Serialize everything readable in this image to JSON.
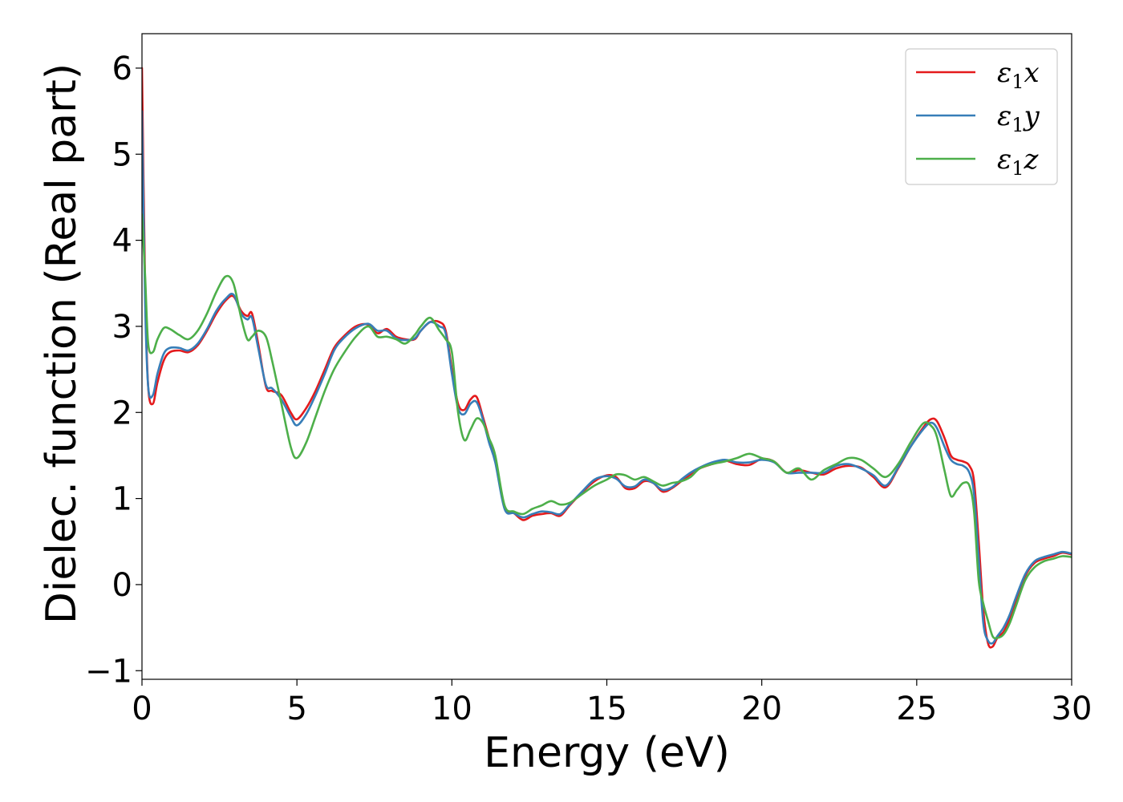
{
  "chart_data": {
    "type": "line",
    "title": "",
    "xlabel": "Energy (eV)",
    "ylabel": "Dielec. function (Real part)",
    "xlim": [
      0,
      30
    ],
    "ylim": [
      -1.1,
      6.4
    ],
    "x_ticks": [
      0,
      5,
      10,
      15,
      20,
      25,
      30
    ],
    "y_ticks": [
      -1,
      0,
      1,
      2,
      3,
      4,
      5,
      6
    ],
    "x_tick_labels": [
      "0",
      "5",
      "10",
      "15",
      "20",
      "25",
      "30"
    ],
    "y_tick_labels": [
      "−1",
      "0",
      "1",
      "2",
      "3",
      "4",
      "5",
      "6"
    ],
    "grid": false,
    "legend_position": "top-right",
    "series": [
      {
        "name": "ε₁x",
        "legend_base": "ε",
        "legend_sub": "1",
        "legend_var": "x",
        "color": "#e41a1c",
        "x": [
          0,
          0.1,
          0.2,
          0.35,
          0.5,
          0.7,
          0.9,
          1.2,
          1.5,
          1.8,
          2.1,
          2.4,
          2.7,
          2.95,
          3.2,
          3.4,
          3.55,
          3.75,
          4.0,
          4.2,
          4.5,
          4.8,
          5.0,
          5.3,
          5.6,
          5.9,
          6.2,
          6.5,
          6.9,
          7.3,
          7.6,
          7.9,
          8.2,
          8.5,
          8.8,
          9.0,
          9.3,
          9.6,
          9.8,
          10.0,
          10.2,
          10.4,
          10.6,
          10.8,
          11.0,
          11.2,
          11.4,
          11.7,
          12.0,
          12.3,
          12.6,
          12.9,
          13.2,
          13.5,
          13.8,
          14.2,
          14.6,
          15.0,
          15.3,
          15.6,
          15.9,
          16.2,
          16.5,
          16.8,
          17.1,
          17.4,
          17.7,
          18.0,
          18.4,
          18.8,
          19.2,
          19.6,
          20.0,
          20.4,
          20.8,
          21.2,
          21.6,
          22.0,
          22.4,
          22.8,
          23.2,
          23.6,
          24.0,
          24.4,
          24.8,
          25.2,
          25.45,
          25.65,
          25.9,
          26.1,
          26.3,
          26.5,
          26.7,
          26.85,
          27.0,
          27.15,
          27.3,
          27.45,
          27.6,
          27.8,
          28.0,
          28.2,
          28.5,
          28.8,
          29.1,
          29.4,
          29.7,
          30.0
        ],
        "y": [
          6.0,
          3.5,
          2.3,
          2.1,
          2.35,
          2.6,
          2.7,
          2.72,
          2.7,
          2.78,
          2.95,
          3.15,
          3.3,
          3.35,
          3.18,
          3.12,
          3.15,
          2.8,
          2.3,
          2.25,
          2.2,
          2.0,
          1.92,
          2.05,
          2.25,
          2.5,
          2.75,
          2.88,
          3.0,
          3.02,
          2.92,
          2.97,
          2.88,
          2.85,
          2.85,
          2.95,
          3.05,
          3.05,
          2.95,
          2.5,
          2.1,
          2.03,
          2.15,
          2.18,
          1.95,
          1.7,
          1.45,
          0.9,
          0.83,
          0.75,
          0.8,
          0.82,
          0.83,
          0.8,
          0.92,
          1.07,
          1.2,
          1.27,
          1.25,
          1.12,
          1.12,
          1.2,
          1.18,
          1.08,
          1.12,
          1.2,
          1.28,
          1.35,
          1.4,
          1.44,
          1.4,
          1.39,
          1.46,
          1.43,
          1.3,
          1.33,
          1.3,
          1.28,
          1.35,
          1.38,
          1.36,
          1.25,
          1.13,
          1.35,
          1.6,
          1.82,
          1.92,
          1.9,
          1.7,
          1.5,
          1.45,
          1.43,
          1.38,
          1.2,
          0.5,
          -0.3,
          -0.68,
          -0.72,
          -0.62,
          -0.55,
          -0.4,
          -0.2,
          0.1,
          0.25,
          0.3,
          0.33,
          0.37,
          0.35
        ]
      },
      {
        "name": "ε₁y",
        "legend_base": "ε",
        "legend_sub": "1",
        "legend_var": "y",
        "color": "#377eb8",
        "x": [
          0,
          0.1,
          0.2,
          0.35,
          0.5,
          0.7,
          0.9,
          1.2,
          1.5,
          1.8,
          2.1,
          2.4,
          2.7,
          2.95,
          3.2,
          3.4,
          3.55,
          3.75,
          4.0,
          4.2,
          4.5,
          4.8,
          5.0,
          5.3,
          5.6,
          5.9,
          6.2,
          6.5,
          6.9,
          7.3,
          7.6,
          7.9,
          8.2,
          8.5,
          8.8,
          9.0,
          9.3,
          9.6,
          9.8,
          10.0,
          10.2,
          10.4,
          10.6,
          10.8,
          11.0,
          11.2,
          11.4,
          11.7,
          12.0,
          12.3,
          12.6,
          12.9,
          13.2,
          13.5,
          13.8,
          14.2,
          14.6,
          15.0,
          15.3,
          15.6,
          15.9,
          16.2,
          16.5,
          16.8,
          17.1,
          17.4,
          17.7,
          18.0,
          18.4,
          18.8,
          19.2,
          19.6,
          20.0,
          20.4,
          20.8,
          21.2,
          21.6,
          22.0,
          22.4,
          22.8,
          23.2,
          23.6,
          24.0,
          24.4,
          24.8,
          25.2,
          25.45,
          25.65,
          25.9,
          26.1,
          26.3,
          26.5,
          26.7,
          26.85,
          27.0,
          27.15,
          27.3,
          27.45,
          27.6,
          27.8,
          28.0,
          28.2,
          28.5,
          28.8,
          29.1,
          29.4,
          29.7,
          30.0
        ],
        "y": [
          5.5,
          3.3,
          2.3,
          2.2,
          2.45,
          2.68,
          2.75,
          2.75,
          2.72,
          2.8,
          2.97,
          3.18,
          3.32,
          3.37,
          3.15,
          3.08,
          3.1,
          2.75,
          2.32,
          2.28,
          2.15,
          1.95,
          1.85,
          1.98,
          2.2,
          2.45,
          2.72,
          2.86,
          2.98,
          3.03,
          2.95,
          2.95,
          2.86,
          2.84,
          2.86,
          2.95,
          3.05,
          3.0,
          2.92,
          2.45,
          2.05,
          1.98,
          2.1,
          2.12,
          1.92,
          1.65,
          1.42,
          0.88,
          0.83,
          0.78,
          0.82,
          0.85,
          0.84,
          0.82,
          0.93,
          1.08,
          1.22,
          1.26,
          1.23,
          1.14,
          1.14,
          1.22,
          1.18,
          1.1,
          1.13,
          1.22,
          1.3,
          1.36,
          1.42,
          1.45,
          1.42,
          1.42,
          1.45,
          1.42,
          1.3,
          1.3,
          1.3,
          1.3,
          1.38,
          1.4,
          1.35,
          1.27,
          1.15,
          1.36,
          1.6,
          1.8,
          1.88,
          1.82,
          1.6,
          1.45,
          1.4,
          1.38,
          1.3,
          1.05,
          0.3,
          -0.45,
          -0.65,
          -0.68,
          -0.6,
          -0.5,
          -0.35,
          -0.15,
          0.12,
          0.27,
          0.32,
          0.35,
          0.38,
          0.36
        ]
      },
      {
        "name": "ε₁z",
        "legend_base": "ε",
        "legend_sub": "1",
        "legend_var": "z",
        "color": "#4daf4a",
        "x": [
          0,
          0.1,
          0.2,
          0.35,
          0.5,
          0.7,
          0.9,
          1.2,
          1.5,
          1.8,
          2.1,
          2.4,
          2.7,
          2.95,
          3.2,
          3.4,
          3.55,
          3.75,
          4.0,
          4.2,
          4.5,
          4.8,
          5.0,
          5.3,
          5.6,
          5.9,
          6.2,
          6.5,
          6.9,
          7.3,
          7.6,
          7.9,
          8.2,
          8.5,
          8.8,
          9.0,
          9.3,
          9.6,
          9.8,
          10.0,
          10.2,
          10.4,
          10.6,
          10.8,
          11.0,
          11.2,
          11.4,
          11.7,
          12.0,
          12.3,
          12.6,
          12.9,
          13.2,
          13.5,
          13.8,
          14.2,
          14.6,
          15.0,
          15.3,
          15.6,
          15.9,
          16.2,
          16.5,
          16.8,
          17.1,
          17.4,
          17.7,
          18.0,
          18.4,
          18.8,
          19.2,
          19.6,
          20.0,
          20.4,
          20.8,
          21.2,
          21.6,
          22.0,
          22.4,
          22.8,
          23.2,
          23.6,
          24.0,
          24.4,
          24.8,
          25.2,
          25.45,
          25.65,
          25.9,
          26.1,
          26.3,
          26.5,
          26.7,
          26.85,
          27.0,
          27.15,
          27.3,
          27.45,
          27.6,
          27.8,
          28.0,
          28.2,
          28.5,
          28.8,
          29.1,
          29.4,
          29.7,
          30.0
        ],
        "y": [
          4.3,
          3.6,
          2.8,
          2.7,
          2.85,
          2.98,
          2.97,
          2.9,
          2.85,
          2.95,
          3.15,
          3.4,
          3.58,
          3.5,
          3.1,
          2.85,
          2.88,
          2.95,
          2.88,
          2.6,
          2.1,
          1.6,
          1.47,
          1.65,
          1.95,
          2.25,
          2.5,
          2.68,
          2.88,
          3.0,
          2.88,
          2.88,
          2.85,
          2.8,
          2.9,
          3.0,
          3.1,
          2.95,
          2.85,
          2.7,
          2.0,
          1.68,
          1.8,
          1.93,
          1.88,
          1.7,
          1.5,
          0.92,
          0.85,
          0.82,
          0.88,
          0.92,
          0.97,
          0.93,
          0.95,
          1.05,
          1.15,
          1.22,
          1.28,
          1.27,
          1.22,
          1.25,
          1.2,
          1.15,
          1.18,
          1.2,
          1.25,
          1.35,
          1.4,
          1.43,
          1.47,
          1.52,
          1.47,
          1.43,
          1.3,
          1.35,
          1.22,
          1.33,
          1.4,
          1.47,
          1.45,
          1.35,
          1.25,
          1.4,
          1.65,
          1.87,
          1.85,
          1.72,
          1.32,
          1.03,
          1.1,
          1.18,
          1.15,
          0.85,
          0.05,
          -0.22,
          -0.42,
          -0.6,
          -0.62,
          -0.58,
          -0.45,
          -0.25,
          0.05,
          0.2,
          0.27,
          0.3,
          0.33,
          0.32
        ]
      }
    ]
  }
}
